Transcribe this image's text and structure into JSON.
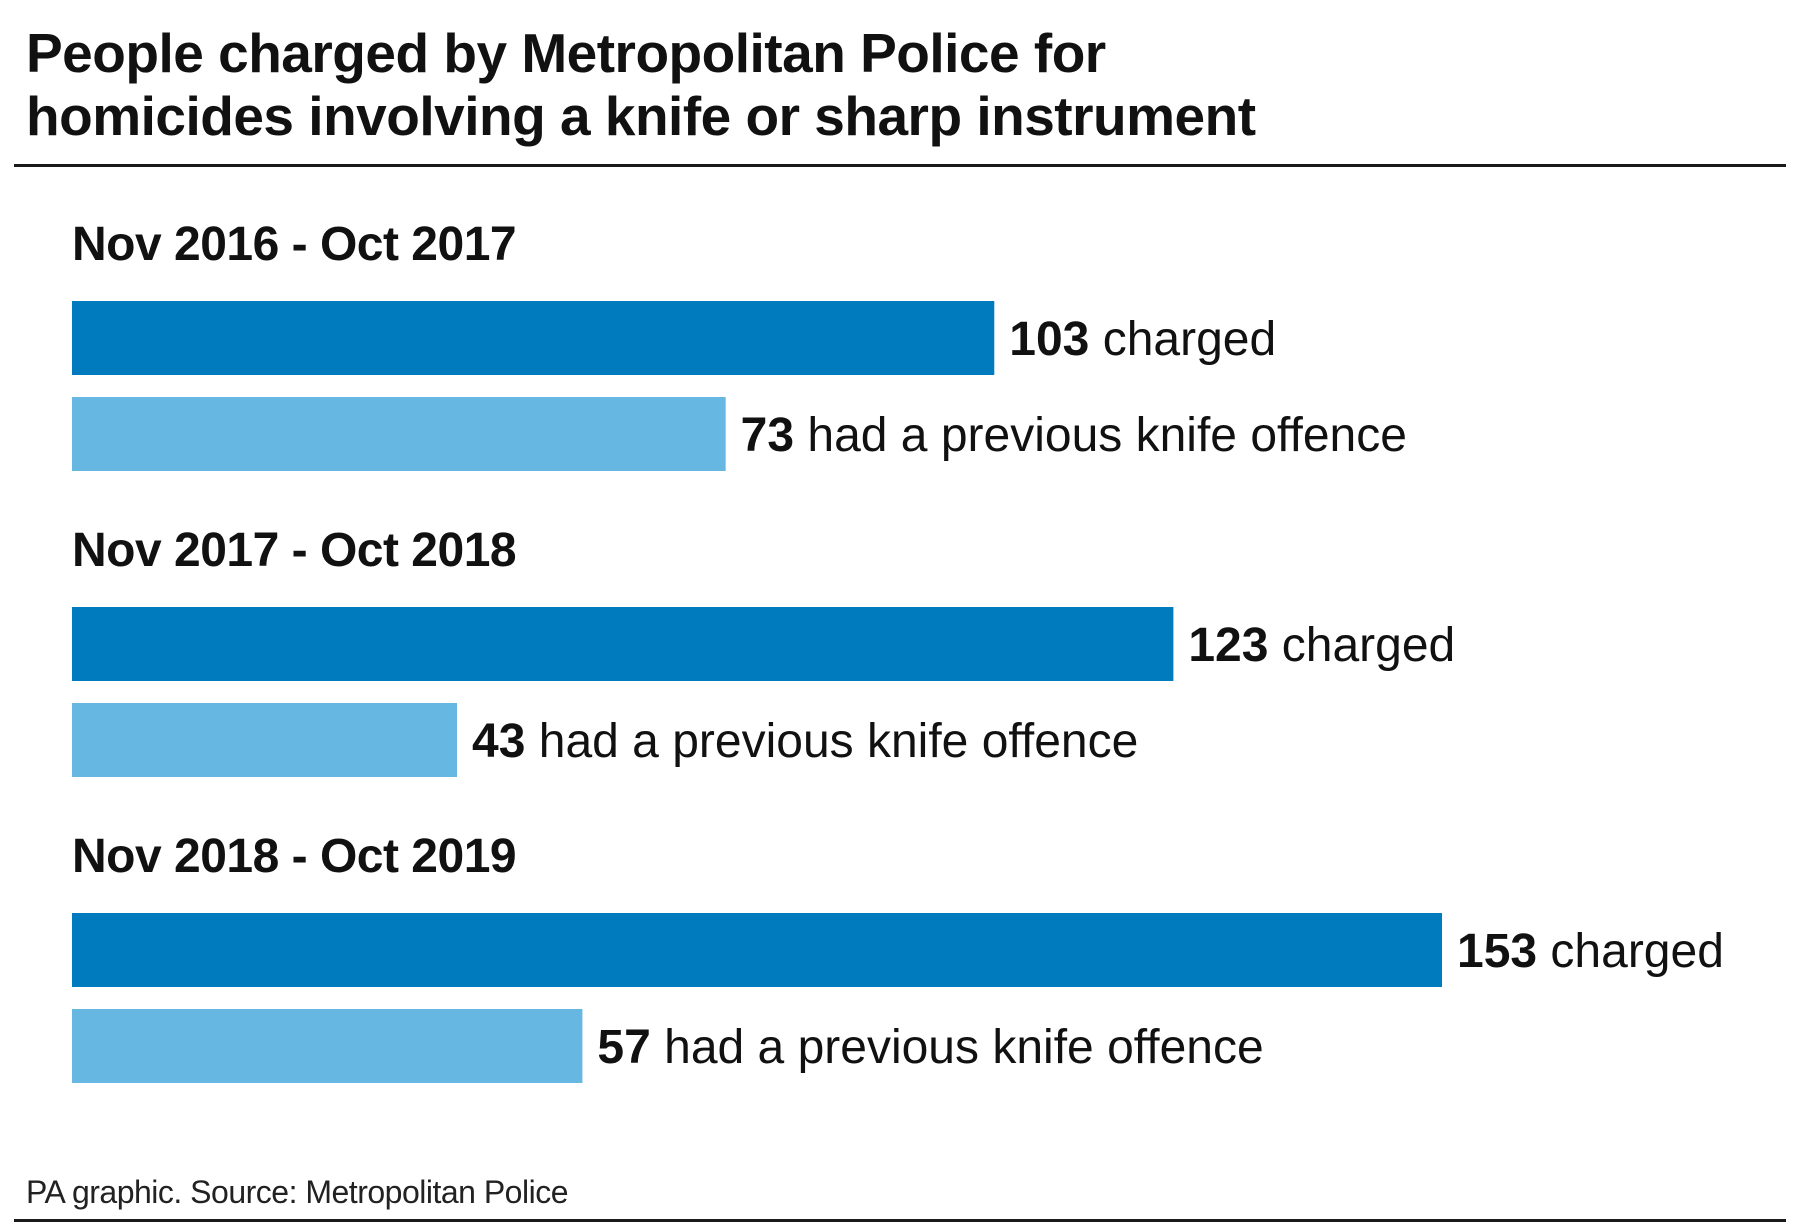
{
  "title_line1": "People charged by Metropolitan Police for",
  "title_line2": "homicides involving a knife or sharp instrument",
  "source": "PA graphic. Source: Metropolitan Police",
  "colors": {
    "charged": "#007bbd",
    "previous": "#66b7e2"
  },
  "chart_data": {
    "type": "bar",
    "orientation": "horizontal",
    "title": "People charged by Metropolitan Police for homicides involving a knife or sharp instrument",
    "categories": [
      "Nov 2016 - Oct 2017",
      "Nov 2017 - Oct 2018",
      "Nov 2018 - Oct 2019"
    ],
    "xlim": [
      0,
      153
    ],
    "grid": false,
    "series": [
      {
        "name": "charged",
        "values": [
          103,
          123,
          153
        ],
        "color": "#007bbd"
      },
      {
        "name": "had a previous knife offence",
        "values": [
          73,
          43,
          57
        ],
        "color": "#66b7e2"
      }
    ]
  }
}
